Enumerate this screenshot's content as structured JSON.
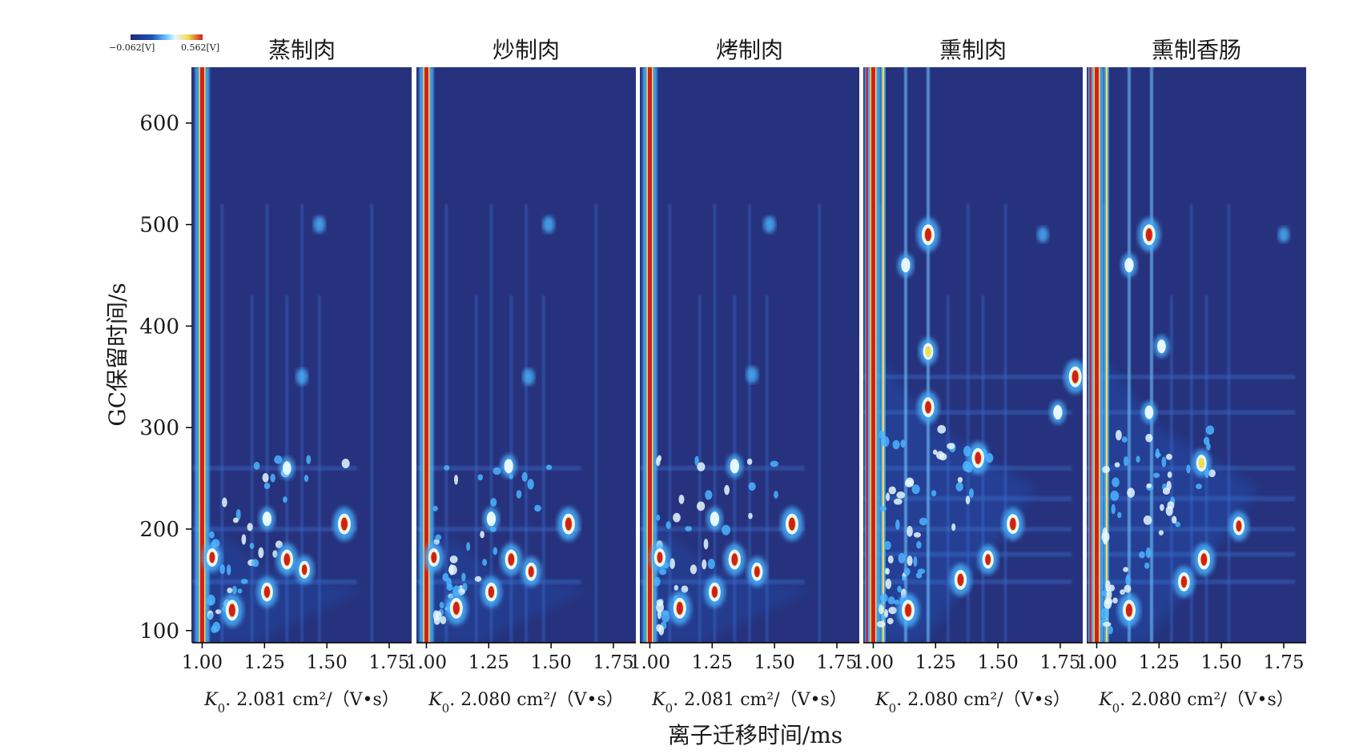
{
  "colors": {
    "background_low": "#26327d",
    "low": "#1e50b4",
    "mid": "#4bb4ff",
    "high_light": "#e6f8ff",
    "yellow": "#f0dc50",
    "peak_red": "#d21e1e"
  },
  "colorbar": {
    "min_label": "−0.062[V]",
    "max_label": "0.562[V]"
  },
  "axis": {
    "ylabel": "GC保留时间/s",
    "xlabel": "离子迁移时间/ms"
  },
  "chart_data": {
    "type": "heatmap",
    "ylim": [
      88,
      655
    ],
    "xlim": [
      0.96,
      1.84
    ],
    "yticks": [
      100,
      200,
      300,
      400,
      500,
      600
    ],
    "xticks": [
      1.0,
      1.25,
      1.5,
      1.75
    ],
    "ytick_labels": [
      "100",
      "200",
      "300",
      "400",
      "500",
      "600"
    ],
    "xtick_labels": [
      "1.00",
      "1.25",
      "1.50",
      "1.75"
    ],
    "panels": [
      {
        "title": "蒸制肉",
        "k0_value": "2.081",
        "k0_prefix": "K",
        "k0_sub": "0",
        "k0_unit": "cm²/（V•s）",
        "peaks": [
          {
            "x": 1.12,
            "y": 120,
            "intensity": 1.0
          },
          {
            "x": 1.57,
            "y": 205,
            "intensity": 1.0
          },
          {
            "x": 1.34,
            "y": 170,
            "intensity": 0.95
          },
          {
            "x": 1.26,
            "y": 138,
            "intensity": 0.9
          },
          {
            "x": 1.41,
            "y": 160,
            "intensity": 0.8
          },
          {
            "x": 1.04,
            "y": 172,
            "intensity": 0.85
          },
          {
            "x": 1.34,
            "y": 260,
            "intensity": 0.55
          },
          {
            "x": 1.26,
            "y": 210,
            "intensity": 0.6
          },
          {
            "x": 1.47,
            "y": 500,
            "intensity": 0.35
          },
          {
            "x": 1.4,
            "y": 350,
            "intensity": 0.35
          }
        ]
      },
      {
        "title": "炒制肉",
        "k0_value": "2.080",
        "k0_prefix": "K",
        "k0_sub": "0",
        "k0_unit": "cm²/（V•s）",
        "peaks": [
          {
            "x": 1.12,
            "y": 122,
            "intensity": 1.0
          },
          {
            "x": 1.57,
            "y": 205,
            "intensity": 1.0
          },
          {
            "x": 1.34,
            "y": 170,
            "intensity": 0.95
          },
          {
            "x": 1.26,
            "y": 138,
            "intensity": 0.9
          },
          {
            "x": 1.42,
            "y": 158,
            "intensity": 0.85
          },
          {
            "x": 1.03,
            "y": 172,
            "intensity": 0.85
          },
          {
            "x": 1.33,
            "y": 262,
            "intensity": 0.6
          },
          {
            "x": 1.26,
            "y": 210,
            "intensity": 0.6
          },
          {
            "x": 1.49,
            "y": 500,
            "intensity": 0.35
          },
          {
            "x": 1.41,
            "y": 350,
            "intensity": 0.35
          }
        ]
      },
      {
        "title": "烤制肉",
        "k0_value": "2.081",
        "k0_prefix": "K",
        "k0_sub": "0",
        "k0_unit": "cm²/（V•s）",
        "peaks": [
          {
            "x": 1.12,
            "y": 122,
            "intensity": 1.0
          },
          {
            "x": 1.57,
            "y": 205,
            "intensity": 1.0
          },
          {
            "x": 1.34,
            "y": 170,
            "intensity": 0.95
          },
          {
            "x": 1.26,
            "y": 138,
            "intensity": 0.9
          },
          {
            "x": 1.43,
            "y": 158,
            "intensity": 0.85
          },
          {
            "x": 1.04,
            "y": 172,
            "intensity": 0.85
          },
          {
            "x": 1.34,
            "y": 262,
            "intensity": 0.6
          },
          {
            "x": 1.26,
            "y": 210,
            "intensity": 0.6
          },
          {
            "x": 1.48,
            "y": 500,
            "intensity": 0.35
          },
          {
            "x": 1.41,
            "y": 352,
            "intensity": 0.35
          }
        ]
      },
      {
        "title": "熏制肉",
        "k0_value": "2.080",
        "k0_prefix": "K",
        "k0_sub": "0",
        "k0_unit": "cm²/（V•s）",
        "peaks": [
          {
            "x": 1.14,
            "y": 120,
            "intensity": 1.0
          },
          {
            "x": 1.22,
            "y": 490,
            "intensity": 1.0
          },
          {
            "x": 1.81,
            "y": 350,
            "intensity": 1.0
          },
          {
            "x": 1.22,
            "y": 320,
            "intensity": 0.95
          },
          {
            "x": 1.42,
            "y": 270,
            "intensity": 0.95
          },
          {
            "x": 1.56,
            "y": 205,
            "intensity": 0.95
          },
          {
            "x": 1.35,
            "y": 150,
            "intensity": 0.95
          },
          {
            "x": 1.46,
            "y": 170,
            "intensity": 0.85
          },
          {
            "x": 1.22,
            "y": 375,
            "intensity": 0.75
          },
          {
            "x": 1.13,
            "y": 460,
            "intensity": 0.6
          },
          {
            "x": 1.74,
            "y": 315,
            "intensity": 0.6
          },
          {
            "x": 1.68,
            "y": 490,
            "intensity": 0.3
          }
        ]
      },
      {
        "title": "熏制香肠",
        "k0_value": "2.080",
        "k0_prefix": "K",
        "k0_sub": "0",
        "k0_unit": "cm²/（V•s）",
        "peaks": [
          {
            "x": 1.13,
            "y": 120,
            "intensity": 1.0
          },
          {
            "x": 1.21,
            "y": 490,
            "intensity": 1.0
          },
          {
            "x": 1.43,
            "y": 170,
            "intensity": 0.95
          },
          {
            "x": 1.35,
            "y": 148,
            "intensity": 0.9
          },
          {
            "x": 1.42,
            "y": 265,
            "intensity": 0.75
          },
          {
            "x": 1.57,
            "y": 203,
            "intensity": 0.85
          },
          {
            "x": 1.13,
            "y": 460,
            "intensity": 0.6
          },
          {
            "x": 1.26,
            "y": 380,
            "intensity": 0.55
          },
          {
            "x": 1.21,
            "y": 315,
            "intensity": 0.55
          },
          {
            "x": 1.75,
            "y": 490,
            "intensity": 0.3
          }
        ]
      }
    ]
  }
}
